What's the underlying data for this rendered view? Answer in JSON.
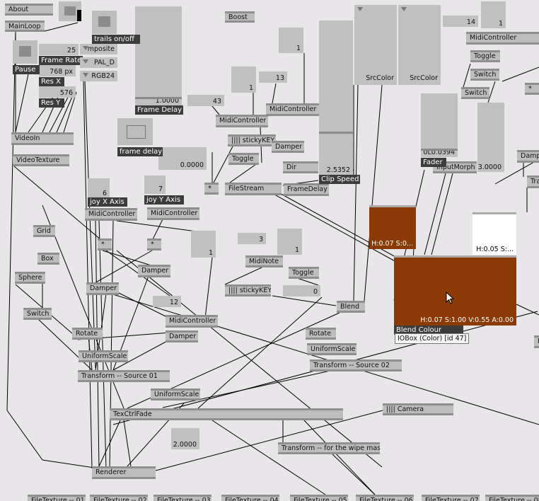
{
  "nodes": [
    {
      "label": "About"
    },
    {
      "label": "MainLoop"
    },
    {
      "label": "VideoIn"
    },
    {
      "label": "VideoTexture"
    },
    {
      "label": "Boost"
    },
    {
      "label": "MidiController"
    },
    {
      "label": "MidiController"
    },
    {
      "label": "|||| stickyKEY"
    },
    {
      "label": "Damper"
    },
    {
      "label": "Toggle"
    },
    {
      "label": "Dir"
    },
    {
      "label": "*"
    },
    {
      "label": "FileStream"
    },
    {
      "label": "FrameDelay"
    },
    {
      "label": "MidiController"
    },
    {
      "label": "Toggle"
    },
    {
      "label": "Switch"
    },
    {
      "label": "Switch"
    },
    {
      "label": "*"
    },
    {
      "label": "InputMorph"
    },
    {
      "label": "Dampe"
    },
    {
      "label": "Tra"
    },
    {
      "label": "MidiController"
    },
    {
      "label": "MidiController"
    },
    {
      "label": "Grid"
    },
    {
      "label": "*"
    },
    {
      "label": "*"
    },
    {
      "label": "Box"
    },
    {
      "label": "Sphere"
    },
    {
      "label": "Damper"
    },
    {
      "label": "Damper"
    },
    {
      "label": "MidiNote"
    },
    {
      "label": "Toggle"
    },
    {
      "label": "|||| stickyKEY"
    },
    {
      "label": "Switch"
    },
    {
      "label": "Blend"
    },
    {
      "label": "MidiController"
    },
    {
      "label": "Damper"
    },
    {
      "label": "Rotate"
    },
    {
      "label": "Rotate"
    },
    {
      "label": "UniformScale"
    },
    {
      "label": "UniformScale"
    },
    {
      "label": "Transform  --  Source 01"
    },
    {
      "label": "Transform  --  Source 02"
    },
    {
      "label": "UniformScale"
    },
    {
      "label": "TexCtrlFade"
    },
    {
      "label": "|||| Camera"
    },
    {
      "label": "Transform  --  for the wipe mask"
    },
    {
      "label": "Renderer"
    },
    {
      "label": "D"
    },
    {
      "label": "FileTexture  --  01"
    },
    {
      "label": "FileTexture  --  02"
    },
    {
      "label": "FileTexture  --  03"
    },
    {
      "label": "FileTexture  --  04"
    },
    {
      "label": "FileTexture  --  05"
    },
    {
      "label": "FileTexture  --  06"
    },
    {
      "label": "FileTexture  --  07"
    },
    {
      "label": "FileTexture  --  08"
    }
  ],
  "values": [
    "25",
    "768 px",
    "576",
    "1.0000",
    "0.0000",
    "1",
    "13",
    "1",
    "43",
    "2.5352",
    "14",
    "1",
    "0L0.0394",
    "3.0000",
    "6",
    "7",
    "1",
    "3",
    "1",
    "0",
    "12",
    "2.0000"
  ],
  "labels": [
    "trails on/off",
    "Pause",
    "Frame Rate",
    "Res X",
    "Res Y",
    "Frame Delay",
    "frame delay",
    "Clip Speed",
    "Fader",
    "joy X Axis",
    "joy Y Axis",
    "Blend Colour"
  ],
  "enums": [
    "mposite",
    "PAL_D",
    "RGB24",
    "SrcColor",
    "SrcColor"
  ],
  "colors": [
    {
      "text": "H:0.07  S:0...",
      "hex": "#8b3a05"
    },
    {
      "text": "H:0.05  S:...",
      "hex": "#ffffff"
    },
    {
      "text": "H:0.07  S:1.00  V:0.55  A:0.00",
      "hex": "#8b3a05"
    }
  ],
  "tooltip": "IOBox (Color) [id 47]"
}
